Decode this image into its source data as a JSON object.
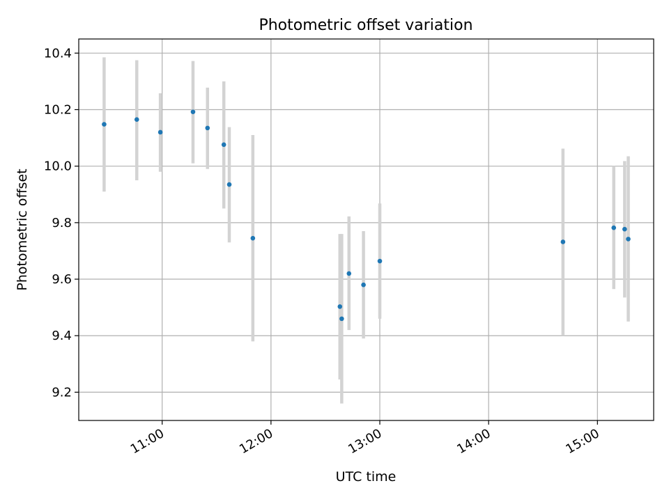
{
  "chart_data": {
    "type": "scatter",
    "title": "Photometric offset variation",
    "xlabel": "UTC time",
    "ylabel": "Photometric offset",
    "x_axis_type": "time",
    "xlim": [
      "10:14",
      "15:31"
    ],
    "ylim": [
      9.1,
      10.45
    ],
    "x_ticks": [
      "11:00",
      "12:00",
      "13:00",
      "14:00",
      "15:00"
    ],
    "y_ticks": [
      9.2,
      9.4,
      9.6,
      9.8,
      10.0,
      10.2,
      10.4
    ],
    "y_tick_labels": [
      "9.2",
      "9.4",
      "9.6",
      "9.8",
      "10.0",
      "10.2",
      "10.4"
    ],
    "grid": true,
    "legend": "none",
    "colors": {
      "point": "#1f77b4",
      "errorbar": "#d3d3d3",
      "grid": "#b0b0b0"
    },
    "series": [
      {
        "points": [
          {
            "x": "10:28",
            "y": 10.148,
            "ylo": 9.91,
            "yhi": 10.385
          },
          {
            "x": "10:46",
            "y": 10.165,
            "ylo": 9.95,
            "yhi": 10.375
          },
          {
            "x": "10:59",
            "y": 10.12,
            "ylo": 9.98,
            "yhi": 10.258
          },
          {
            "x": "11:17",
            "y": 10.192,
            "ylo": 10.01,
            "yhi": 10.372
          },
          {
            "x": "11:25",
            "y": 10.135,
            "ylo": 9.99,
            "yhi": 10.278
          },
          {
            "x": "11:34",
            "y": 10.076,
            "ylo": 9.85,
            "yhi": 10.3
          },
          {
            "x": "11:37",
            "y": 9.935,
            "ylo": 9.73,
            "yhi": 10.138
          },
          {
            "x": "11:50",
            "y": 9.745,
            "ylo": 9.38,
            "yhi": 10.11
          },
          {
            "x": "12:38",
            "y": 9.503,
            "ylo": 9.245,
            "yhi": 9.76
          },
          {
            "x": "12:39",
            "y": 9.46,
            "ylo": 9.16,
            "yhi": 9.76
          },
          {
            "x": "12:43",
            "y": 9.62,
            "ylo": 9.42,
            "yhi": 9.822
          },
          {
            "x": "12:51",
            "y": 9.58,
            "ylo": 9.39,
            "yhi": 9.77
          },
          {
            "x": "13:00",
            "y": 9.664,
            "ylo": 9.46,
            "yhi": 9.868
          },
          {
            "x": "14:41",
            "y": 9.732,
            "ylo": 9.4,
            "yhi": 10.062
          },
          {
            "x": "15:09",
            "y": 9.782,
            "ylo": 9.565,
            "yhi": 10.0
          },
          {
            "x": "15:15",
            "y": 9.777,
            "ylo": 9.535,
            "yhi": 10.018
          },
          {
            "x": "15:17",
            "y": 9.742,
            "ylo": 9.45,
            "yhi": 10.035
          }
        ]
      }
    ]
  }
}
